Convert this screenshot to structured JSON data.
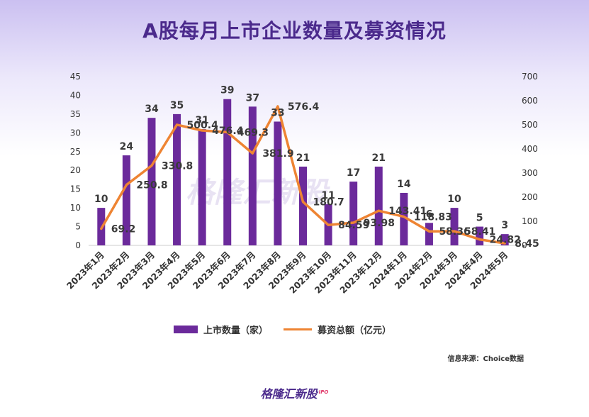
{
  "title": "A股每月上市企业数量及募资情况",
  "source": "信息来源：Choice数据",
  "footer": {
    "brand": "格隆汇新股",
    "tag": "IPO"
  },
  "watermark": "格隆汇新股",
  "colors": {
    "bars": "#6b2a9b",
    "line": "#ee8433",
    "title": "#4b2a8c"
  },
  "chart_data": {
    "type": "bar+line",
    "categories": [
      "2023年1月",
      "2023年2月",
      "2023年3月",
      "2023年4月",
      "2023年5月",
      "2023年6月",
      "2023年7月",
      "2023年8月",
      "2023年9月",
      "2023年10月",
      "2023年11月",
      "2023年12月",
      "2024年1月",
      "2024年2月",
      "2024年3月",
      "2024年4月",
      "2024年5月"
    ],
    "series": [
      {
        "name": "上市数量（家）",
        "type": "bar",
        "axis": "left",
        "values": [
          10,
          24,
          34,
          35,
          31,
          39,
          37,
          33,
          21,
          11,
          17,
          21,
          14,
          6,
          10,
          5,
          3
        ],
        "labels": [
          "10",
          "24",
          "34",
          "35",
          "31",
          "39",
          "37",
          "33",
          "21",
          "11",
          "17",
          "21",
          "14",
          "6",
          "10",
          "5",
          "3"
        ]
      },
      {
        "name": "募资总额（亿元）",
        "type": "line",
        "axis": "right",
        "values": [
          69.2,
          250.8,
          330.8,
          500.4,
          476.4,
          469.3,
          381.9,
          576.4,
          180.7,
          84.59,
          93.98,
          143.41,
          118.83,
          58.36,
          58.41,
          24.82,
          8.45
        ],
        "labels": [
          "69.2",
          "250.8",
          "330.8",
          "500.4",
          "476.4",
          "469.3",
          "381.9",
          "576.4",
          "180.7",
          "84.59",
          "93.98",
          "143.41",
          "118.83",
          "58.36",
          "58.41",
          "24.82",
          "8.45"
        ]
      }
    ],
    "left_axis": {
      "ylim": [
        0,
        45
      ],
      "ticks": [
        "0",
        "5",
        "10",
        "15",
        "20",
        "25",
        "30",
        "35",
        "40",
        "45"
      ]
    },
    "right_axis": {
      "ylim": [
        0,
        700
      ],
      "ticks": [
        "0",
        "100",
        "200",
        "300",
        "400",
        "500",
        "600",
        "700"
      ]
    },
    "legend": "bottom"
  }
}
